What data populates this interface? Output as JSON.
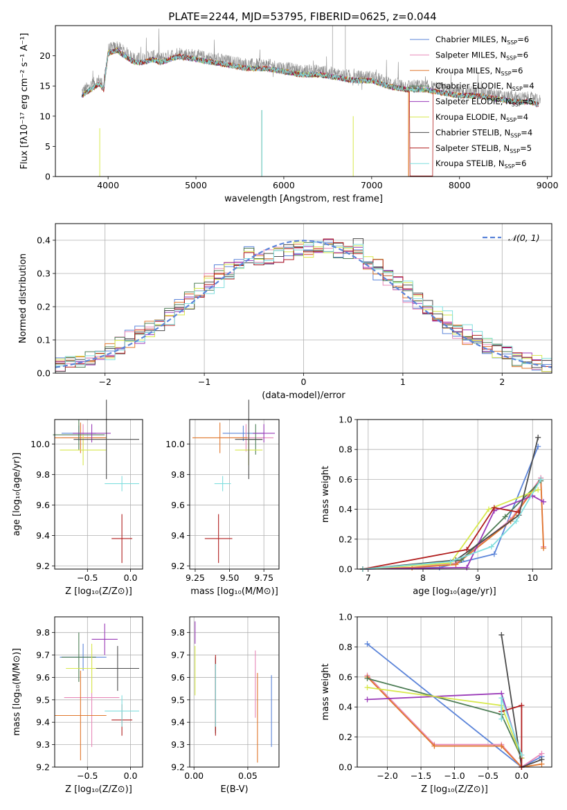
{
  "figure_title": "PLATE=2244, MJD=53795, FIBERID=0625, z=0.044",
  "colors": {
    "Chabrier MILES": "#5b84d9",
    "Salpeter MILES": "#e888b8",
    "Kroupa MILES": "#e0772c",
    "Chabrier ELODIE": "#4d7d55",
    "Salpeter ELODIE": "#9a3ab8",
    "Kroupa ELODIE": "#d7e84a",
    "Chabrier STELIB": "#4a4a4a",
    "Salpeter STELIB": "#b01c1c",
    "Kroupa STELIB": "#7fdede",
    "data": "#8c8c8c",
    "gaussian": "#5b84d9",
    "grid": "#b0b0b0"
  },
  "chart_data": [
    {
      "id": "spectrum",
      "type": "line",
      "xlabel": "wavelength [Angstrom, rest frame]",
      "ylabel": "Flux [fλ10⁻¹⁷ erg cm⁻² s⁻¹ A⁻¹]",
      "xlim": [
        3400,
        9050
      ],
      "ylim": [
        0,
        25
      ],
      "xticks": [
        4000,
        5000,
        6000,
        7000,
        8000,
        9000
      ],
      "yticks": [
        0,
        5,
        10,
        15,
        20
      ],
      "grid": false,
      "legend_position": "top-right",
      "data_envelope": {
        "x": [
          3700,
          3800,
          3900,
          3950,
          4000,
          4100,
          4200,
          4300,
          4400,
          4500,
          4600,
          4800,
          5000,
          5200,
          5400,
          5600,
          5800,
          6000,
          6200,
          6400,
          6600,
          6800,
          7000,
          7200,
          7400,
          7600,
          7800,
          8000,
          8200,
          8400,
          8600,
          8800,
          8900
        ],
        "y": [
          14,
          15,
          16,
          15,
          21,
          21.5,
          20.5,
          19.5,
          19.5,
          20,
          19.5,
          20.5,
          20,
          19.5,
          19,
          18.5,
          18.5,
          18,
          17.5,
          17.5,
          17,
          16.5,
          16.5,
          15.5,
          15,
          15,
          14.5,
          14,
          14,
          13.5,
          13,
          13,
          12.5
        ]
      },
      "series": [
        {
          "name": "Chabrier MILES, N_SSP=6",
          "legend_main": "Chabrier MILES, N",
          "legend_sub": "SSP",
          "legend_tail": "=6"
        },
        {
          "name": "Salpeter MILES, N_SSP=6",
          "legend_main": "Salpeter MILES, N",
          "legend_sub": "SSP",
          "legend_tail": "=6"
        },
        {
          "name": "Kroupa MILES, N_SSP=6",
          "legend_main": "Kroupa MILES, N",
          "legend_sub": "SSP",
          "legend_tail": "=6"
        },
        {
          "name": "Chabrier ELODIE, N_SSP=4",
          "legend_main": "Chabrier ELODIE, N",
          "legend_sub": "SSP",
          "legend_tail": "=4"
        },
        {
          "name": "Salpeter ELODIE, N_SSP=5",
          "legend_main": "Salpeter ELODIE, N",
          "legend_sub": "SSP",
          "legend_tail": "=5"
        },
        {
          "name": "Kroupa ELODIE, N_SSP=4",
          "legend_main": "Kroupa ELODIE, N",
          "legend_sub": "SSP",
          "legend_tail": "=4"
        },
        {
          "name": "Chabrier STELIB, N_SSP=4",
          "legend_main": "Chabrier STELIB, N",
          "legend_sub": "SSP",
          "legend_tail": "=4"
        },
        {
          "name": "Salpeter STELIB, N_SSP=5",
          "legend_main": "Salpeter STELIB, N",
          "legend_sub": "SSP",
          "legend_tail": "=5"
        },
        {
          "name": "Kroupa STELIB, N_SSP=6",
          "legend_main": "Kroupa STELIB, N",
          "legend_sub": "SSP",
          "legend_tail": "=6"
        }
      ]
    },
    {
      "id": "residuals",
      "type": "line",
      "xlabel": "(data-model)/error",
      "ylabel": "Normed distribution",
      "xlim": [
        -2.5,
        2.5
      ],
      "ylim": [
        0,
        0.45
      ],
      "xticks": [
        -2,
        -1,
        0,
        1,
        2
      ],
      "yticks": [
        0.0,
        0.1,
        0.2,
        0.3,
        0.4
      ],
      "grid": true,
      "legend_position": "top-right",
      "legend": "𝒩(0, 1)",
      "bin_width": 0.1,
      "bin_start": -2.5
    },
    {
      "id": "age_vs_Z",
      "type": "scatter",
      "xlabel": "Z [log₁₀(Z/Z⊙)]",
      "ylabel": "age  [log₁₀(age/yr)]",
      "xlim": [
        -0.88,
        0.14
      ],
      "ylim": [
        9.18,
        10.16
      ],
      "xticks": [
        -0.5,
        0.0
      ],
      "yticks": [
        9.2,
        9.4,
        9.6,
        9.8,
        10.0
      ],
      "grid": true,
      "points": [
        {
          "x": -0.6,
          "y": 10.07,
          "xerr": 0.2,
          "yerr": 0.05
        },
        {
          "x": -0.55,
          "y": 10.04,
          "xerr": 0.25,
          "yerr": 0.09
        },
        {
          "x": -0.58,
          "y": 10.04,
          "xerr": 0.3,
          "yerr": 0.1
        },
        {
          "x": -0.6,
          "y": 10.06,
          "xerr": 0.3,
          "yerr": 0.1
        },
        {
          "x": -0.45,
          "y": 10.07,
          "xerr": 0.22,
          "yerr": 0.06
        },
        {
          "x": -0.55,
          "y": 9.96,
          "xerr": 0.27,
          "yerr": 0.1
        },
        {
          "x": -0.28,
          "y": 10.03,
          "xerr": 0.38,
          "yerr": 0.26
        },
        {
          "x": -0.1,
          "y": 9.38,
          "xerr": 0.12,
          "yerr": 0.16
        },
        {
          "x": -0.1,
          "y": 9.74,
          "xerr": 0.2,
          "yerr": 0.05
        }
      ]
    },
    {
      "id": "age_vs_mass",
      "type": "scatter",
      "xlabel": "mass [log₁₀(M/M⊙)]",
      "ylabel": "",
      "xlim": [
        9.21,
        9.86
      ],
      "ylim": [
        9.18,
        10.16
      ],
      "xticks": [
        9.25,
        9.5,
        9.75
      ],
      "yticks": [
        9.2,
        9.4,
        9.6,
        9.8,
        10.0
      ],
      "grid": true,
      "points": [
        {
          "x": 9.6,
          "y": 10.07,
          "xerr": 0.15,
          "yerr": 0.05
        },
        {
          "x": 9.62,
          "y": 10.04,
          "xerr": 0.2,
          "yerr": 0.09
        },
        {
          "x": 9.43,
          "y": 10.04,
          "xerr": 0.2,
          "yerr": 0.1
        },
        {
          "x": 9.69,
          "y": 10.03,
          "xerr": 0.05,
          "yerr": 0.1
        },
        {
          "x": 9.75,
          "y": 10.07,
          "xerr": 0.08,
          "yerr": 0.06
        },
        {
          "x": 9.64,
          "y": 9.96,
          "xerr": 0.1,
          "yerr": 0.1
        },
        {
          "x": 9.64,
          "y": 10.03,
          "xerr": 0.1,
          "yerr": 0.26
        },
        {
          "x": 9.42,
          "y": 9.38,
          "xerr": 0.1,
          "yerr": 0.16
        },
        {
          "x": 9.45,
          "y": 9.74,
          "xerr": 0.06,
          "yerr": 0.05
        }
      ]
    },
    {
      "id": "mass_weight_vs_age",
      "type": "line",
      "xlabel": "age  [log₁₀(age/yr)]",
      "ylabel": "mass weight",
      "xlim": [
        6.8,
        10.35
      ],
      "ylim": [
        0,
        1
      ],
      "xticks": [
        7,
        8,
        9,
        10
      ],
      "yticks": [
        0.0,
        0.2,
        0.4,
        0.6,
        0.8,
        1.0
      ],
      "grid": true,
      "series": [
        {
          "name": "Chabrier MILES",
          "x": [
            6.9,
            8.3,
            9.3,
            10.1
          ],
          "y": [
            0.0,
            0.01,
            0.1,
            0.82
          ]
        },
        {
          "name": "Salpeter MILES",
          "x": [
            6.9,
            7.8,
            8.6,
            9.6,
            10.15,
            10.2
          ],
          "y": [
            0.0,
            0.01,
            0.04,
            0.33,
            0.61,
            0.15
          ]
        },
        {
          "name": "Kroupa MILES",
          "x": [
            6.9,
            7.8,
            8.6,
            9.6,
            10.15,
            10.2
          ],
          "y": [
            0.0,
            0.01,
            0.03,
            0.32,
            0.6,
            0.14
          ]
        },
        {
          "name": "Chabrier ELODIE",
          "x": [
            6.9,
            8.7,
            9.5,
            10.15
          ],
          "y": [
            0.0,
            0.06,
            0.35,
            0.59
          ]
        },
        {
          "name": "Salpeter ELODIE",
          "x": [
            6.9,
            8.8,
            9.3,
            10.0,
            10.2
          ],
          "y": [
            0.0,
            0.01,
            0.39,
            0.49,
            0.45
          ]
        },
        {
          "name": "Kroupa ELODIE",
          "x": [
            6.9,
            8.5,
            9.2,
            10.1
          ],
          "y": [
            0.0,
            0.04,
            0.4,
            0.53
          ]
        },
        {
          "name": "Chabrier STELIB",
          "x": [
            6.9,
            8.6,
            9.75,
            10.1
          ],
          "y": [
            0.0,
            0.06,
            0.36,
            0.88
          ]
        },
        {
          "name": "Salpeter STELIB",
          "x": [
            6.9,
            8.8,
            9.3,
            9.75
          ],
          "y": [
            0.0,
            0.13,
            0.41,
            0.38
          ]
        },
        {
          "name": "Kroupa STELIB",
          "x": [
            6.9,
            8.5,
            9.25,
            9.7,
            10.15
          ],
          "y": [
            0.0,
            0.05,
            0.15,
            0.32,
            0.6
          ]
        }
      ]
    },
    {
      "id": "mass_vs_Z",
      "type": "scatter",
      "xlabel": "Z [log₁₀(Z/Z⊙)]",
      "ylabel": "mass [log₁₀(M/M⊙)]",
      "xlim": [
        -0.88,
        0.14
      ],
      "ylim": [
        9.2,
        9.87
      ],
      "xticks": [
        -0.5,
        0.0
      ],
      "yticks": [
        9.2,
        9.3,
        9.4,
        9.5,
        9.6,
        9.7,
        9.8
      ],
      "grid": true,
      "points": [
        {
          "x": -0.55,
          "y": 9.69,
          "xerr": 0.27,
          "yerr": 0.06
        },
        {
          "x": -0.45,
          "y": 9.51,
          "xerr": 0.32,
          "yerr": 0.22
        },
        {
          "x": -0.58,
          "y": 9.43,
          "xerr": 0.3,
          "yerr": 0.2
        },
        {
          "x": -0.6,
          "y": 9.69,
          "xerr": 0.2,
          "yerr": 0.11
        },
        {
          "x": -0.3,
          "y": 9.77,
          "xerr": 0.15,
          "yerr": 0.07
        },
        {
          "x": -0.45,
          "y": 9.64,
          "xerr": 0.3,
          "yerr": 0.11
        },
        {
          "x": -0.15,
          "y": 9.64,
          "xerr": 0.25,
          "yerr": 0.1
        },
        {
          "x": -0.1,
          "y": 9.41,
          "xerr": 0.12,
          "yerr": 0.07
        },
        {
          "x": -0.1,
          "y": 9.45,
          "xerr": 0.2,
          "yerr": 0.07
        }
      ]
    },
    {
      "id": "mass_vs_ebv",
      "type": "scatter",
      "xlabel": "E(B-V)",
      "ylabel": "",
      "xlim": [
        -0.004,
        0.079
      ],
      "ylim": [
        9.2,
        9.87
      ],
      "xticks": [
        0.0,
        0.05
      ],
      "xticklabels": [
        "0.00",
        "0.05"
      ],
      "yticks": [
        9.2,
        9.3,
        9.4,
        9.5,
        9.6,
        9.7,
        9.8
      ],
      "grid": true,
      "points": [
        {
          "x": 0.072,
          "y": 9.45,
          "yerr": 0.16
        },
        {
          "x": 0.057,
          "y": 9.57,
          "yerr": 0.15
        },
        {
          "x": 0.059,
          "y": 9.42,
          "yerr": 0.2
        },
        {
          "x": 0.02,
          "y": 9.51,
          "yerr": 0.15
        },
        {
          "x": 0.001,
          "y": 9.8,
          "yerr": 0.05
        },
        {
          "x": 0.001,
          "y": 9.63,
          "yerr": 0.11
        },
        {
          "x": 0.02,
          "y": 9.52,
          "yerr": 0.17
        },
        {
          "x": 0.02,
          "y": 9.52,
          "yerr": 0.18
        },
        {
          "x": 0.02,
          "y": 9.52,
          "yerr": 0.14
        }
      ]
    },
    {
      "id": "mass_weight_vs_Z",
      "type": "line",
      "xlabel": "Z [log₁₀(Z/Z⊙)]",
      "ylabel": "mass weight",
      "xlim": [
        -2.45,
        0.45
      ],
      "ylim": [
        0,
        1
      ],
      "xticks": [
        -2.0,
        -1.5,
        -1.0,
        -0.5,
        0.0
      ],
      "xticklabels": [
        "−2.0",
        "−1.5",
        "−1.0",
        "−0.5",
        "0.0"
      ],
      "yticks": [
        0.0,
        0.2,
        0.4,
        0.6,
        0.8,
        1.0
      ],
      "grid": true,
      "series": [
        {
          "name": "Chabrier MILES",
          "x": [
            -2.3,
            0.0,
            0.3
          ],
          "y": [
            0.82,
            0.0,
            0.07
          ]
        },
        {
          "name": "Salpeter MILES",
          "x": [
            -2.3,
            -1.3,
            -0.3,
            0.0,
            0.3
          ],
          "y": [
            0.61,
            0.15,
            0.15,
            0.0,
            0.09
          ]
        },
        {
          "name": "Kroupa MILES",
          "x": [
            -2.3,
            -1.3,
            -0.3,
            0.0,
            0.3
          ],
          "y": [
            0.6,
            0.14,
            0.14,
            0.0,
            0.02
          ]
        },
        {
          "name": "Chabrier ELODIE",
          "x": [
            -2.3,
            -0.3,
            0.0
          ],
          "y": [
            0.59,
            0.35,
            0.06
          ]
        },
        {
          "name": "Salpeter ELODIE",
          "x": [
            -2.3,
            -0.3,
            0.0
          ],
          "y": [
            0.45,
            0.49,
            0.06
          ]
        },
        {
          "name": "Kroupa ELODIE",
          "x": [
            -2.3,
            -0.3,
            0.0
          ],
          "y": [
            0.53,
            0.41,
            0.06
          ]
        },
        {
          "name": "Chabrier STELIB",
          "x": [
            -0.3,
            0.0,
            0.3
          ],
          "y": [
            0.88,
            0.0,
            0.05
          ]
        },
        {
          "name": "Salpeter STELIB",
          "x": [
            -0.3,
            0.0,
            0.0
          ],
          "y": [
            0.37,
            0.41,
            0.0
          ]
        },
        {
          "name": "Kroupa STELIB",
          "x": [
            -0.3,
            -0.3,
            0.0
          ],
          "y": [
            0.32,
            0.46,
            0.08
          ]
        }
      ]
    }
  ]
}
